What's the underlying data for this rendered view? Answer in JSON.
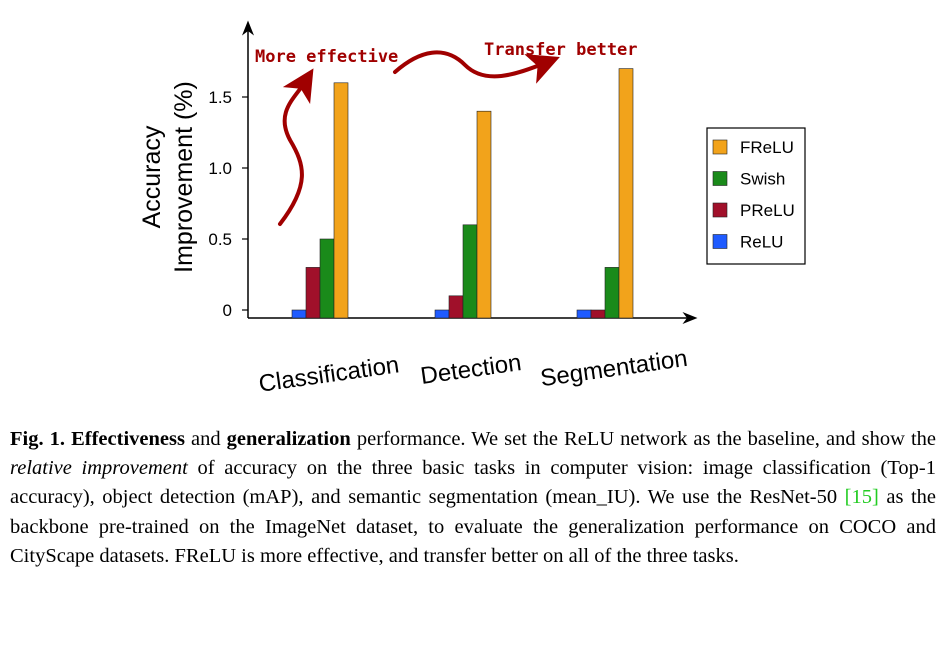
{
  "chart_data": {
    "type": "bar",
    "categories": [
      "Classification",
      "Detection",
      "Segmentation"
    ],
    "series": [
      {
        "name": "ReLU",
        "color": "#1f5bff",
        "values": [
          0,
          0,
          0
        ]
      },
      {
        "name": "PReLU",
        "color": "#a0102a",
        "values": [
          0.3,
          0.1,
          0
        ]
      },
      {
        "name": "Swish",
        "color": "#1a8a1a",
        "values": [
          0.5,
          0.6,
          0.3
        ]
      },
      {
        "name": "FReLU",
        "color": "#f2a31b",
        "values": [
          1.6,
          1.4,
          1.7
        ]
      }
    ],
    "ylabel_line1": "Accuracy",
    "ylabel_line2": "Improvement (%)",
    "yticks": [
      "0",
      "0.5",
      "1.0",
      "1.5"
    ],
    "ytick_values": [
      0,
      0.5,
      1.0,
      1.5
    ],
    "ylim": [
      -0.05,
      2.0
    ],
    "legend_order": [
      "FReLU",
      "Swish",
      "PReLU",
      "ReLU"
    ],
    "legend_position": "right",
    "annotations": {
      "more_effective": "More effective",
      "transfer_better": "Transfer better"
    },
    "annotation_color": "#a00000"
  },
  "caption": {
    "fig_label": "Fig. 1.",
    "bold1": "Effectiveness",
    "and1": " and ",
    "bold2": "generalization",
    "text1": " performance. We set the ReLU network as the baseline, and show the ",
    "italic1": "relative improvement",
    "text2": " of accuracy on the three basic tasks in computer vision: image classification (Top-1 accuracy), object detection (mAP), and semantic segmentation (mean_IU). We use the ResNet-50 ",
    "cite": "[15]",
    "text3": " as the backbone pre-trained on the ImageNet dataset, to evaluate the generalization performance on COCO and CityScape datasets. FReLU is more effective, and transfer better on all of the three tasks."
  }
}
